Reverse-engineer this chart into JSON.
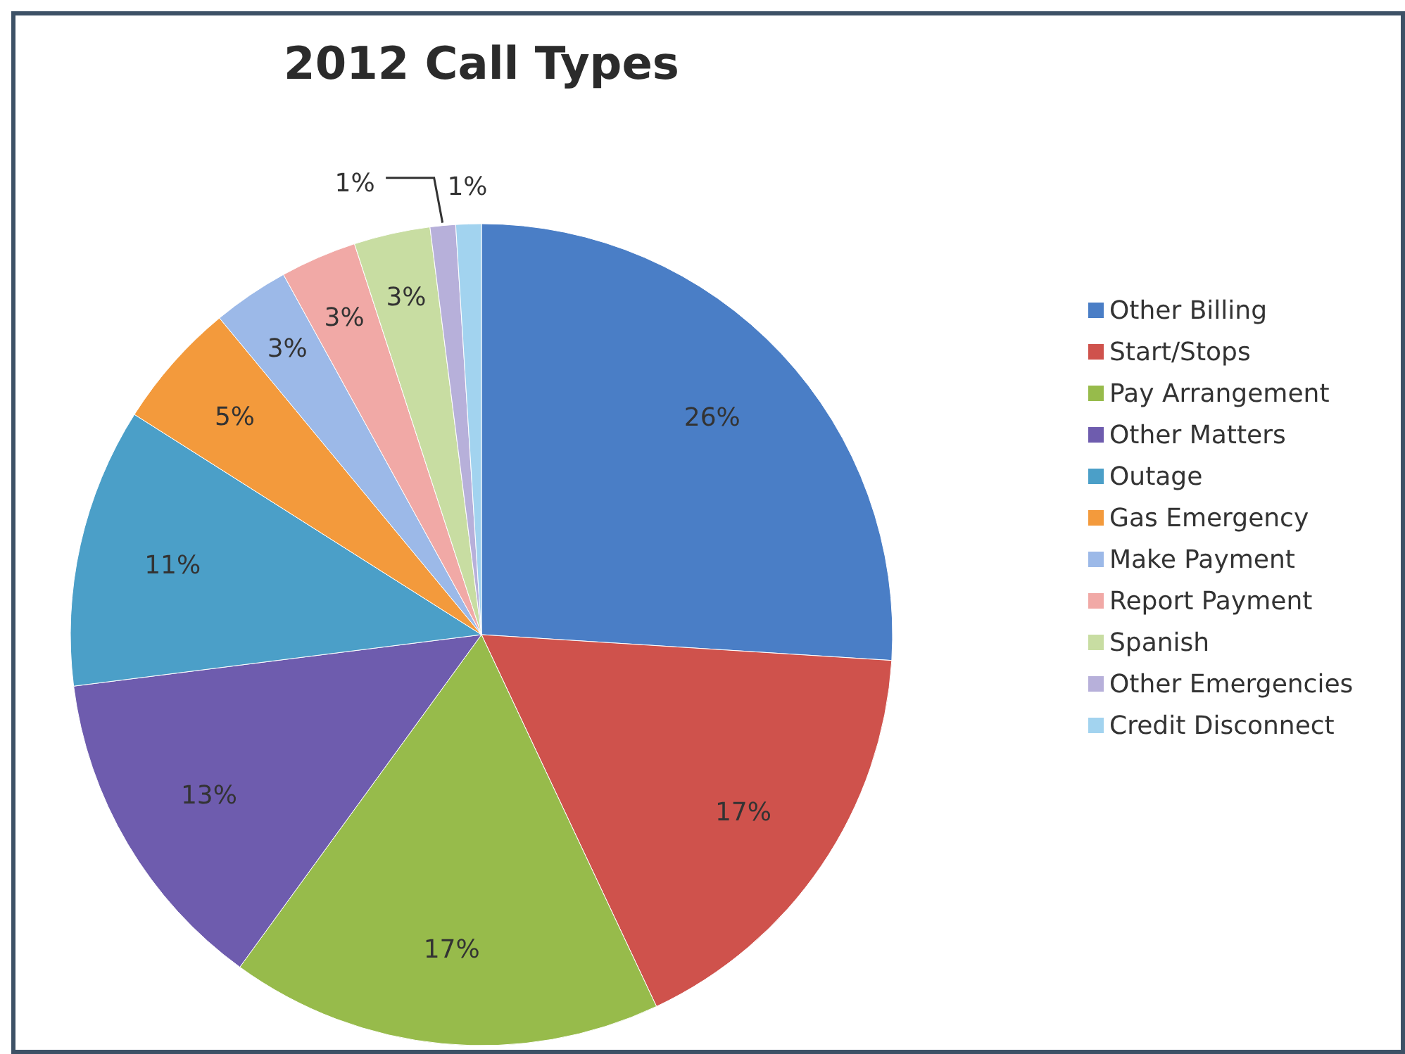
{
  "chart_data": {
    "type": "pie",
    "title": "2012 Call Types",
    "categories": [
      "Other Billing",
      "Start/Stops",
      "Pay Arrangement",
      "Other Matters",
      "Outage",
      "Gas Emergency",
      "Make Payment",
      "Report Payment",
      "Spanish",
      "Other Emergencies",
      "Credit Disconnect"
    ],
    "values": [
      26,
      17,
      17,
      13,
      11,
      5,
      3,
      3,
      3,
      1,
      1
    ],
    "colors": [
      "#4a7ec6",
      "#cf524c",
      "#97bb4b",
      "#6e5cae",
      "#4b9fc8",
      "#f39a3c",
      "#9cb9e8",
      "#f1a9a6",
      "#c8dda2",
      "#b7b0da",
      "#a2d3ef"
    ],
    "value_labels": [
      "26%",
      "17%",
      "17%",
      "13%",
      "11%",
      "5%",
      "3%",
      "3%",
      "3%",
      "1%",
      "1%"
    ],
    "legend": "right"
  }
}
